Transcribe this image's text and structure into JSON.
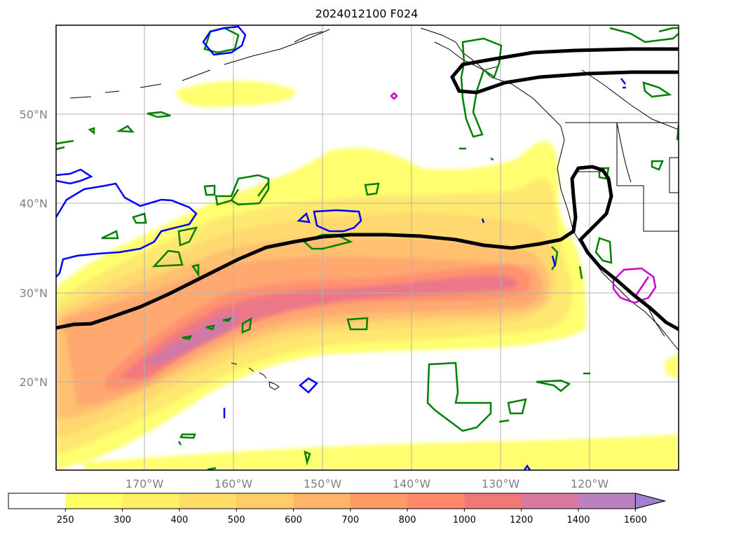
{
  "title": "2024012100 F024",
  "lat_labels": [
    "50°N",
    "40°N",
    "30°N",
    "20°N"
  ],
  "lon_labels": [
    "170°W",
    "160°W",
    "150°W",
    "140°W",
    "130°W",
    "120°W"
  ],
  "colorbar": {
    "ticks": [
      "250",
      "300",
      "400",
      "500",
      "600",
      "700",
      "800",
      "1000",
      "1200",
      "1400",
      "1600"
    ],
    "colors": [
      "#ffffff",
      "#ffff66",
      "#ffee66",
      "#ffdd66",
      "#ffcc66",
      "#ffb466",
      "#ff9c66",
      "#ff8866",
      "#f27878",
      "#d978a0",
      "#bb80c0",
      "#a080d0"
    ],
    "extend": "max"
  },
  "colors": {
    "axis_contour": "#000000",
    "blue_contour": "#0000ff",
    "green_contour": "#008000",
    "magenta_contour": "#cc00cc",
    "gridline": "#b0b0b0",
    "label_gray": "#808080"
  }
}
